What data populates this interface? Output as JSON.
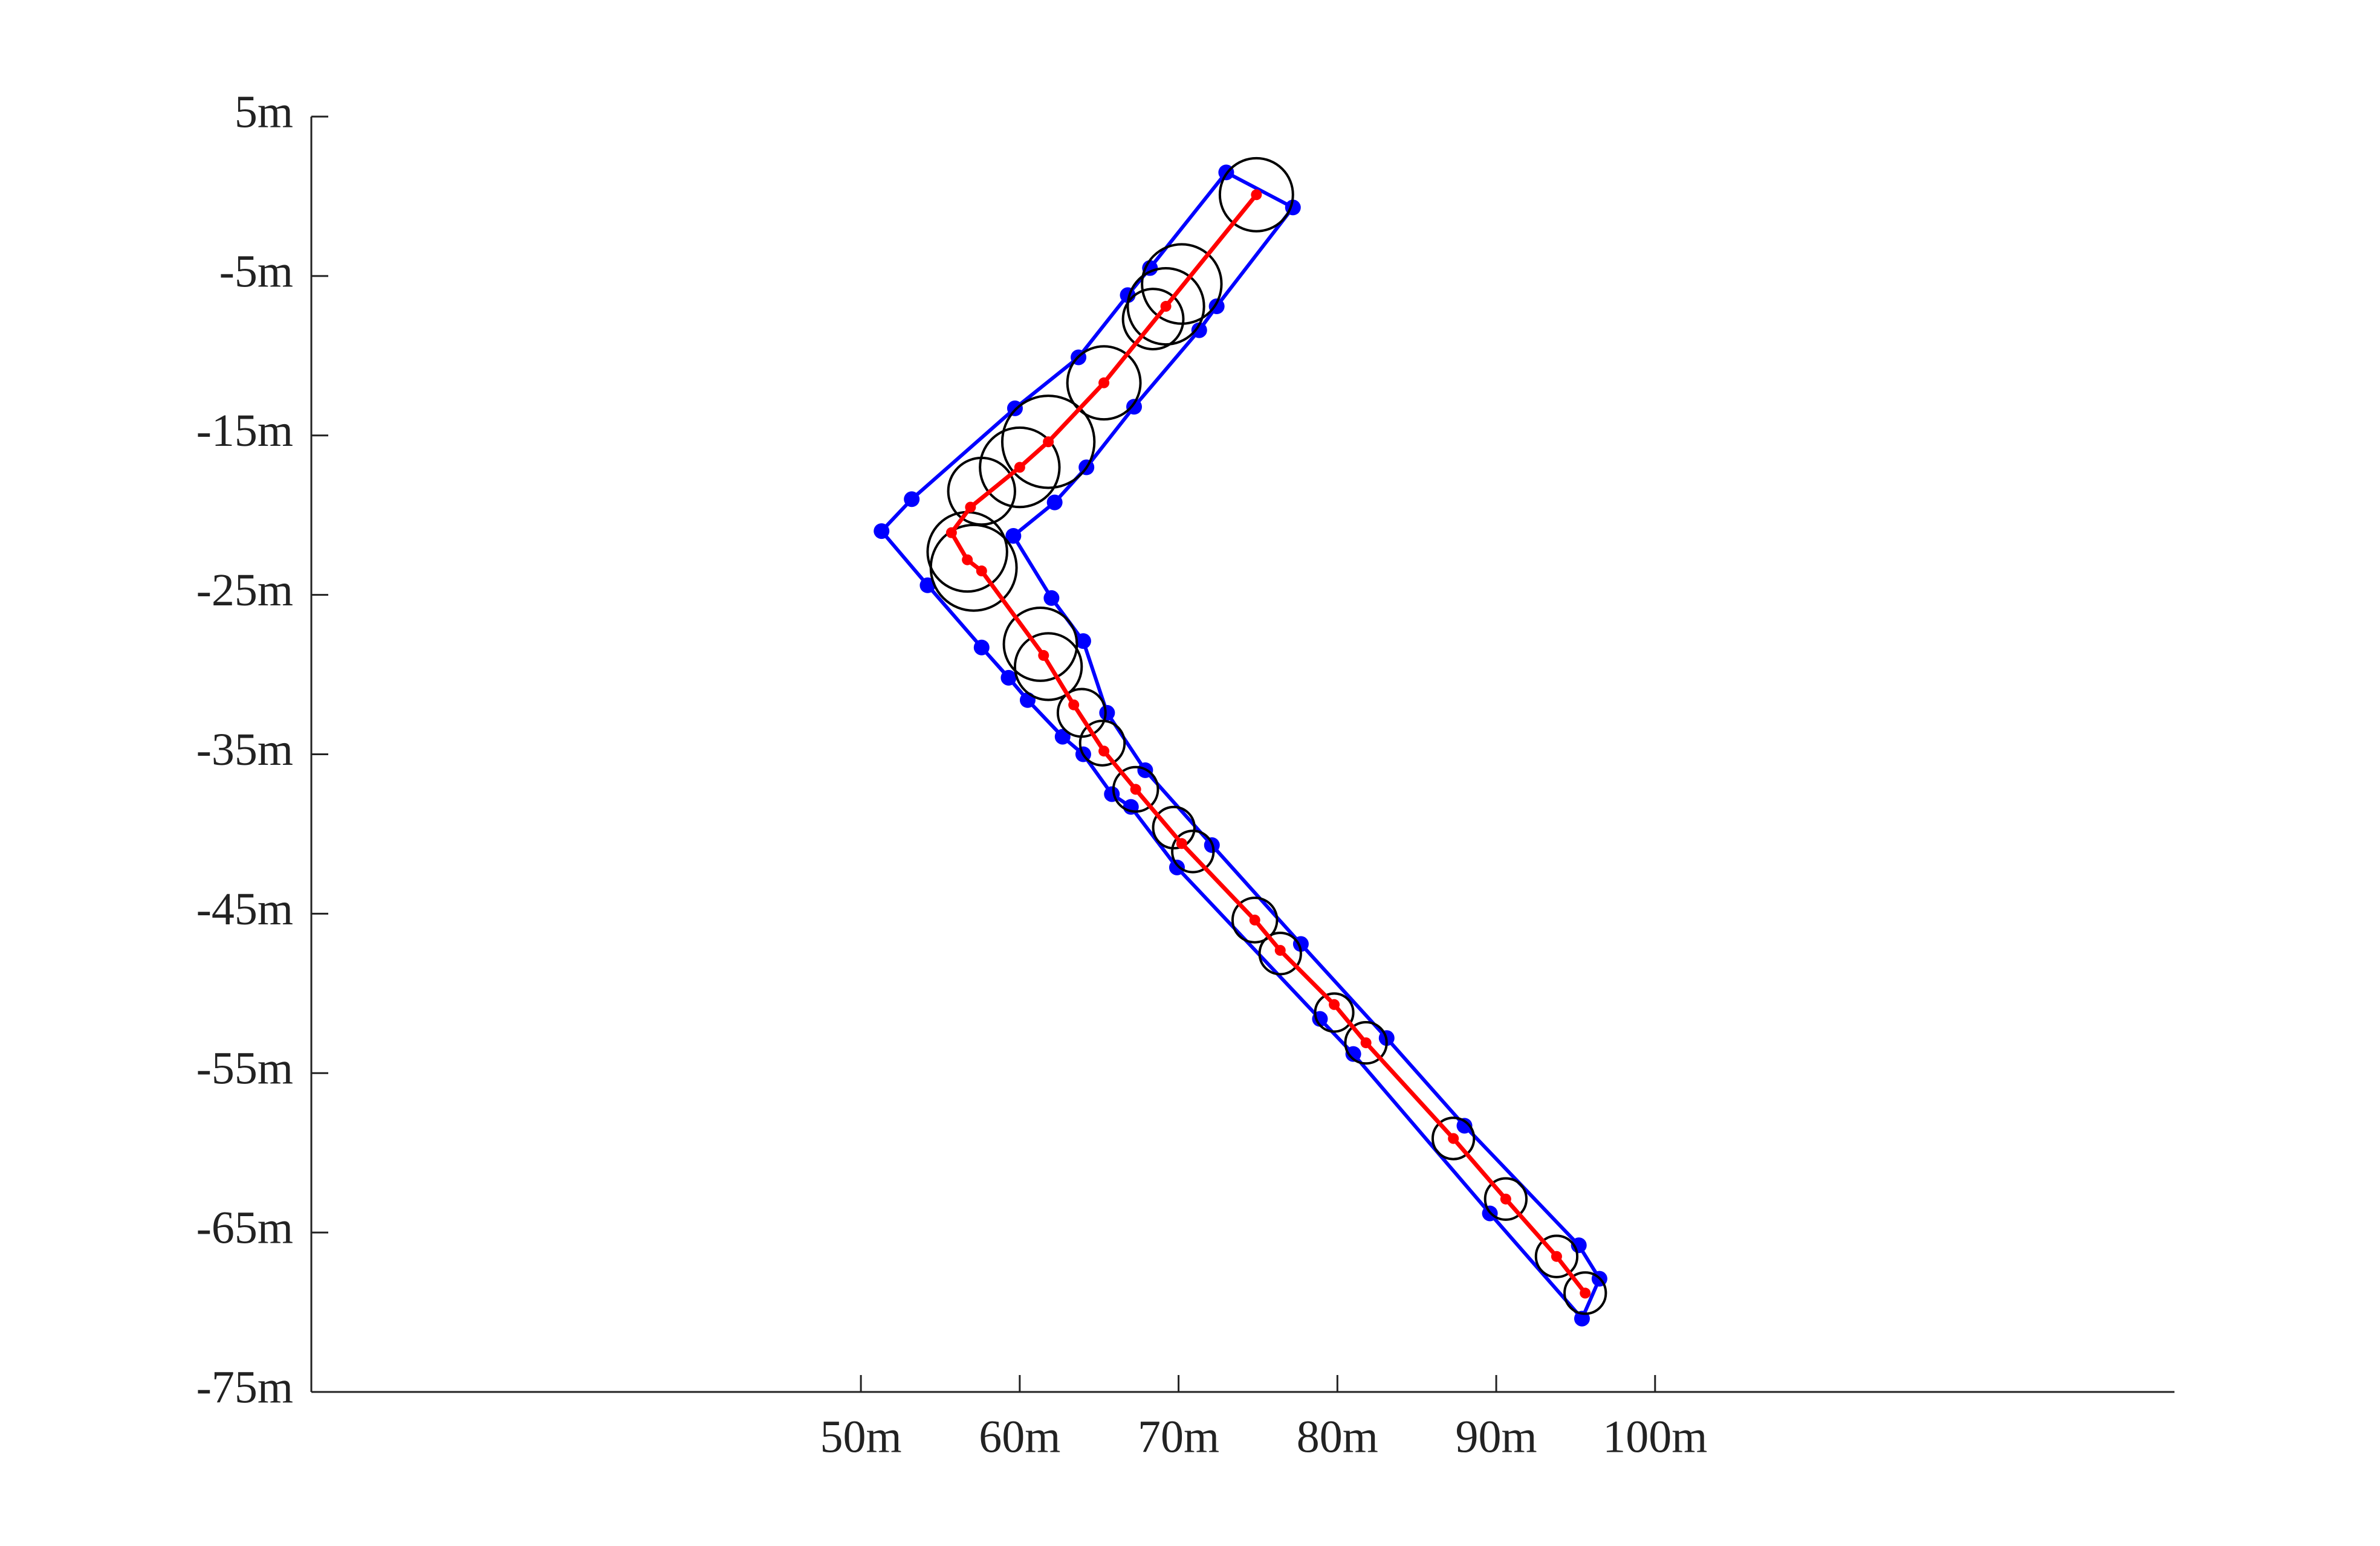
{
  "chart_data": {
    "type": "scatter",
    "xlim": [
      15.4,
      132.7
    ],
    "ylim": [
      -75,
      5
    ],
    "xticks": [
      {
        "value": 50,
        "label": "50m"
      },
      {
        "value": 60,
        "label": "60m"
      },
      {
        "value": 70,
        "label": "70m"
      },
      {
        "value": 80,
        "label": "80m"
      },
      {
        "value": 90,
        "label": "90m"
      },
      {
        "value": 100,
        "label": "100m"
      }
    ],
    "yticks": [
      {
        "value": 5,
        "label": "5m"
      },
      {
        "value": -5,
        "label": "-5m"
      },
      {
        "value": -15,
        "label": "-15m"
      },
      {
        "value": -25,
        "label": "-25m"
      },
      {
        "value": -35,
        "label": "-35m"
      },
      {
        "value": -45,
        "label": "-45m"
      },
      {
        "value": -55,
        "label": "-55m"
      },
      {
        "value": -65,
        "label": "-65m"
      },
      {
        "value": -75,
        "label": "-75m"
      }
    ],
    "series": [
      {
        "color": "#0000ff",
        "shape": "polygon",
        "x": [
          73.0,
          68.2,
          66.8,
          63.7,
          59.7,
          53.2,
          51.3,
          54.2,
          57.6,
          59.3,
          60.5,
          62.7,
          64.0,
          65.8,
          67.0,
          69.9,
          78.9,
          81.0,
          89.6,
          95.4,
          96.5,
          95.2,
          88.0,
          83.1,
          77.7,
          72.1,
          67.9,
          65.5,
          64.0,
          62.0,
          59.6,
          62.2,
          64.2,
          67.2,
          71.3,
          72.4,
          77.2
        ],
        "y": [
          1.5,
          -4.5,
          -6.2,
          -10.1,
          -13.3,
          -19.0,
          -21.0,
          -24.4,
          -28.3,
          -30.2,
          -31.6,
          -33.9,
          -35.0,
          -37.5,
          -38.3,
          -42.1,
          -51.6,
          -53.8,
          -63.8,
          -70.4,
          -67.9,
          -65.8,
          -58.3,
          -52.8,
          -46.9,
          -40.7,
          -36.0,
          -32.4,
          -27.9,
          -25.2,
          -21.3,
          -19.2,
          -17.0,
          -13.2,
          -8.4,
          -6.9,
          -0.7
        ]
      },
      {
        "color": "#000000",
        "shape": "circles",
        "x": [
          74.9,
          70.2,
          69.2,
          68.4,
          65.3,
          61.8,
          60.0,
          57.6,
          56.7,
          57.1,
          61.3,
          61.8,
          63.9,
          65.2,
          67.3,
          69.7,
          70.9,
          74.8,
          76.4,
          79.8,
          81.8,
          87.3,
          90.6,
          93.8,
          95.6
        ],
        "y": [
          0.1,
          -5.5,
          -6.9,
          -7.7,
          -11.7,
          -15.4,
          -17.0,
          -18.5,
          -22.3,
          -23.3,
          -28.1,
          -29.5,
          -32.4,
          -34.3,
          -37.2,
          -39.6,
          -41.1,
          -45.4,
          -47.5,
          -51.2,
          -53.1,
          -59.1,
          -62.9,
          -66.5,
          -68.8
        ],
        "sizes": [
          2.3,
          2.5,
          2.4,
          1.9,
          2.3,
          2.9,
          2.5,
          2.1,
          2.5,
          2.7,
          2.3,
          2.1,
          1.5,
          1.4,
          1.4,
          1.3,
          1.3,
          1.4,
          1.3,
          1.2,
          1.3,
          1.3,
          1.3,
          1.3,
          1.3
        ]
      },
      {
        "color": "#ff0000",
        "shape": "line",
        "x": [
          74.9,
          69.2,
          65.3,
          61.8,
          60.0,
          56.9,
          55.7,
          56.7,
          57.6,
          61.5,
          63.4,
          65.3,
          67.3,
          70.2,
          74.8,
          76.4,
          79.8,
          81.8,
          87.3,
          90.6,
          93.8,
          95.6
        ],
        "y": [
          0.1,
          -6.9,
          -11.7,
          -15.4,
          -17.0,
          -19.5,
          -21.1,
          -22.8,
          -23.5,
          -28.8,
          -31.9,
          -34.8,
          -37.2,
          -40.6,
          -45.4,
          -47.3,
          -50.7,
          -53.1,
          -59.1,
          -62.9,
          -66.5,
          -68.8
        ]
      }
    ]
  }
}
